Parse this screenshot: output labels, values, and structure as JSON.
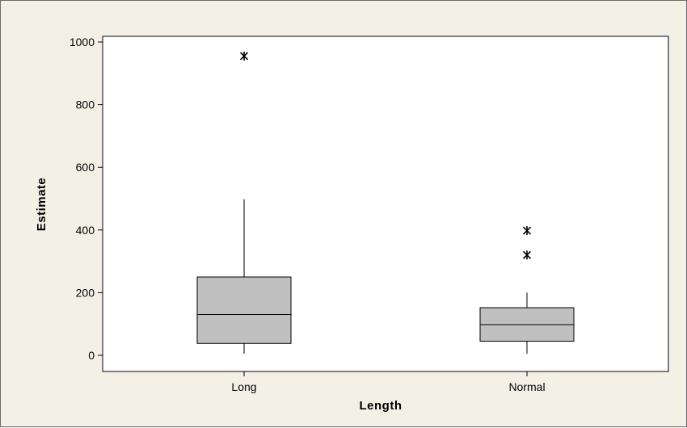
{
  "chart_data": {
    "type": "boxplot",
    "title": "",
    "xlabel": "Length",
    "ylabel": "Estimate",
    "ylim": [
      -50,
      1020
    ],
    "y_ticks": [
      0,
      200,
      400,
      600,
      800,
      1000
    ],
    "grid": false,
    "legend": "none",
    "categories": [
      "Long",
      "Normal"
    ],
    "boxes": [
      {
        "category": "Long",
        "whisker_low": 5,
        "q1": 38,
        "median": 130,
        "q3": 250,
        "whisker_high": 498,
        "outliers": [
          955
        ]
      },
      {
        "category": "Normal",
        "whisker_low": 5,
        "q1": 45,
        "median": 98,
        "q3": 152,
        "whisker_high": 200,
        "outliers": [
          320,
          398
        ]
      }
    ],
    "colors": {
      "box_fill": "#c0c0c0",
      "background": "#f3f1e6",
      "plot_background": "#ffffff",
      "stroke": "#000000"
    }
  }
}
